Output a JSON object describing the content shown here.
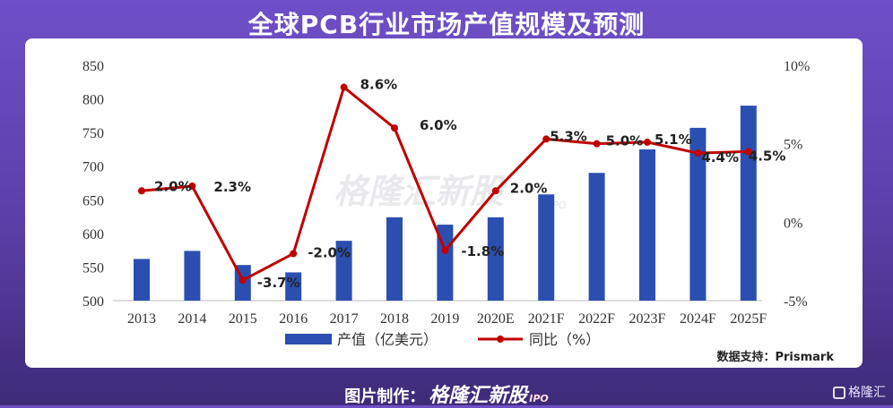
{
  "page_title": "全球PCB行业市场产值规模及预测",
  "source_note": "数据支持：Prismark",
  "watermark": {
    "brand": "格隆汇新股",
    "suffix": "IPO"
  },
  "footer": {
    "prefix": "图片制作：",
    "brand": "格隆汇新股",
    "suffix": "IPO"
  },
  "corner_logo": "格隆汇",
  "colors": {
    "bar": "#2b4fb0",
    "line": "#c00000",
    "background": "#6a4bc0"
  },
  "chart_data": {
    "type": "bar",
    "categories": [
      "2013",
      "2014",
      "2015",
      "2016",
      "2017",
      "2018",
      "2019",
      "2020E",
      "2021F",
      "2022F",
      "2023F",
      "2024F",
      "2025F"
    ],
    "series": [
      {
        "name": "产值（亿美元）",
        "type": "bar",
        "axis": "left",
        "values": [
          562,
          574,
          553,
          542,
          589,
          624,
          613,
          624,
          658,
          690,
          725,
          757,
          790
        ]
      },
      {
        "name": "同比（%）",
        "type": "line",
        "axis": "right",
        "values": [
          2.0,
          2.3,
          -3.7,
          -2.0,
          8.6,
          6.0,
          -1.8,
          2.0,
          5.3,
          5.0,
          5.1,
          4.4,
          4.5
        ],
        "labels": [
          "2.0%",
          "2.3%",
          "-3.7%",
          "-2.0%",
          "8.6%",
          "6.0%",
          "-1.8%",
          "2.0%",
          "5.3%",
          "5.0%",
          "5.1%",
          "4.4%",
          "4.5%"
        ]
      }
    ],
    "y_left": {
      "range": [
        500,
        850
      ],
      "ticks": [
        "850",
        "800",
        "750",
        "700",
        "650",
        "600",
        "550",
        "500"
      ]
    },
    "y_right": {
      "range": [
        -5,
        10
      ],
      "ticks": [
        "10%",
        "5%",
        "0%",
        "-5%"
      ]
    },
    "legend": {
      "placement": "bottom",
      "items": [
        "产值（亿美元）",
        "同比（%）"
      ]
    },
    "grid": false
  }
}
